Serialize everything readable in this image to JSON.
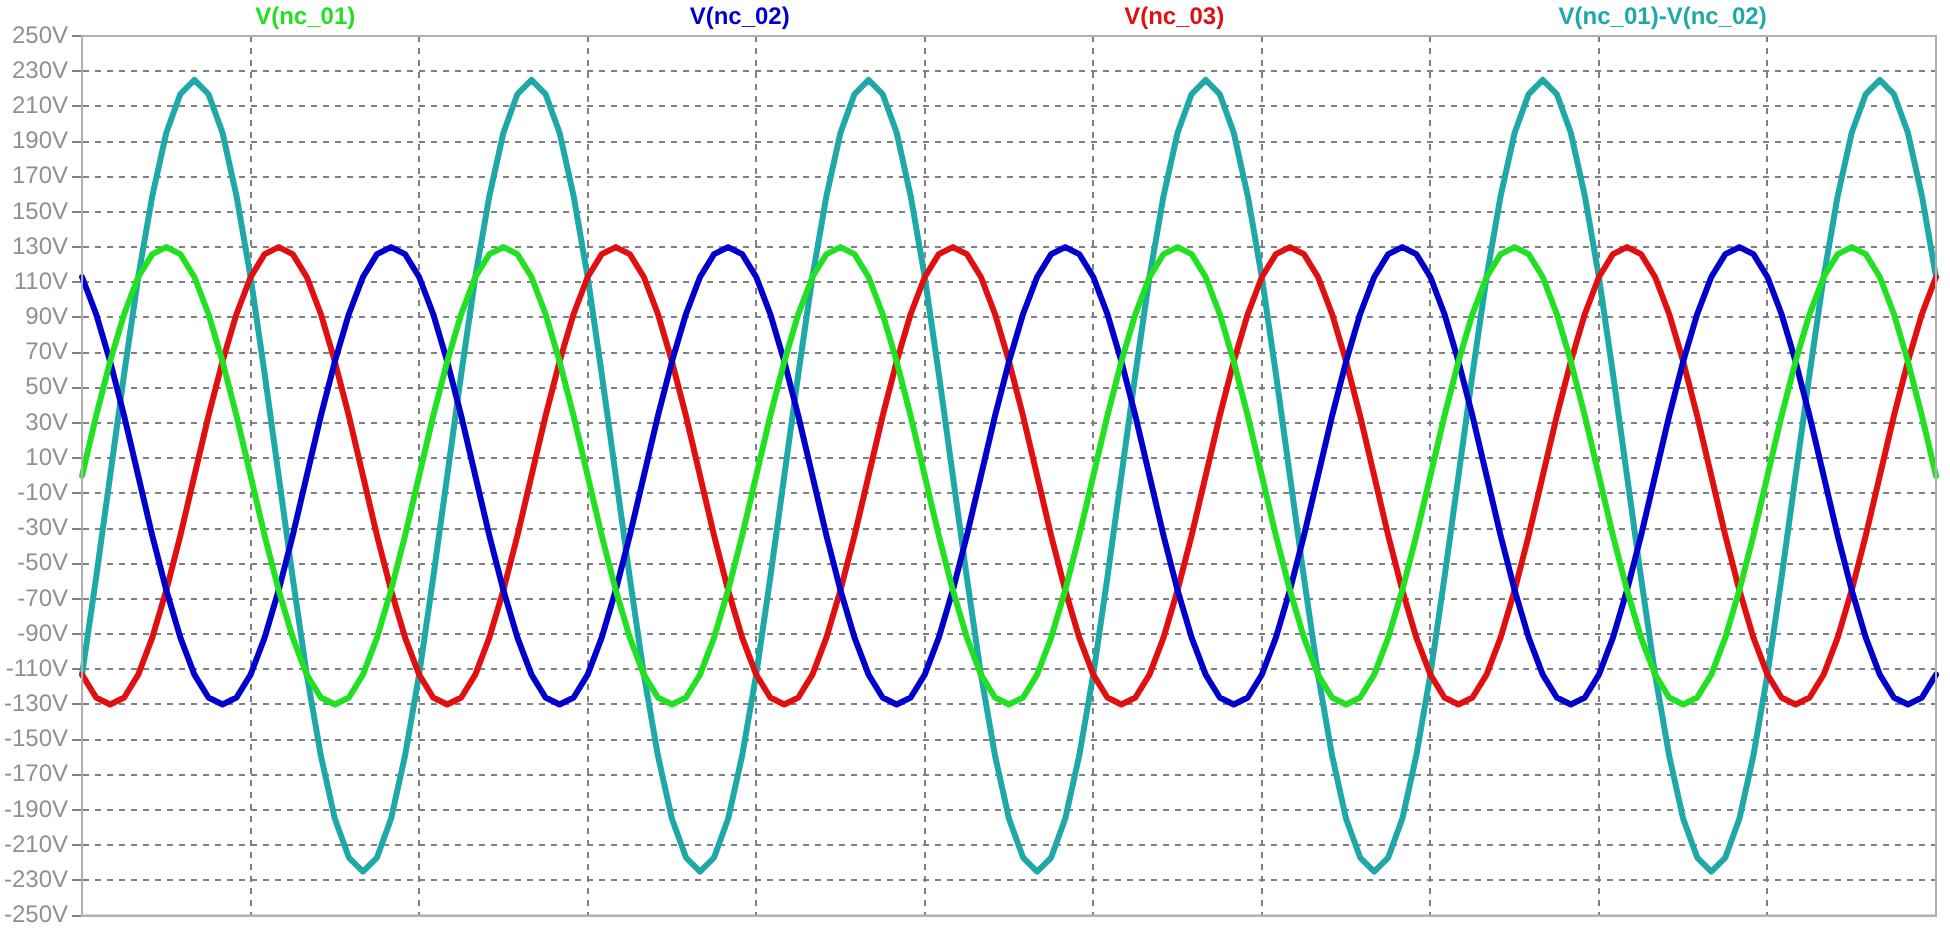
{
  "chart_data": {
    "type": "line",
    "categories": [
      null,
      null,
      null,
      null,
      null,
      null,
      null,
      null,
      null,
      null,
      null,
      null,
      null,
      null,
      null,
      null,
      null,
      null,
      null,
      null,
      null,
      null,
      null,
      null,
      null,
      null,
      null,
      null,
      null,
      null,
      null,
      null,
      null,
      null,
      null,
      null,
      null,
      null,
      null,
      null,
      null,
      null,
      null,
      null,
      null,
      null,
      null,
      null,
      null,
      null,
      null,
      null,
      null,
      null,
      null,
      null,
      null,
      null,
      null,
      null,
      null,
      null,
      null,
      null,
      null,
      null,
      null,
      null,
      null,
      null,
      null,
      null,
      null,
      null,
      null,
      null,
      null,
      null,
      null,
      null,
      null,
      null,
      null,
      null,
      null,
      null,
      null,
      null,
      null,
      null,
      null,
      null,
      null,
      null,
      null,
      null,
      null,
      null,
      null,
      null,
      null,
      null,
      null,
      null,
      null,
      null,
      null,
      null,
      null,
      null,
      null,
      null,
      null,
      null,
      null,
      null,
      null,
      null,
      null,
      null,
      null,
      null,
      null,
      null,
      null,
      null,
      null,
      null,
      null,
      null,
      null,
      null,
      null
    ],
    "series": [
      {
        "name": "V(nc_01)",
        "color": "#22e022",
        "values": [
          0,
          34,
          65,
          92,
          113,
          126,
          130,
          126,
          113,
          92,
          65,
          34,
          0,
          -34,
          -65,
          -92,
          -113,
          -126,
          -130,
          -126,
          -113,
          -92,
          -65,
          -34,
          0,
          34,
          65,
          92,
          113,
          126,
          130,
          126,
          113,
          92,
          65,
          34,
          0,
          -34,
          -65,
          -92,
          -113,
          -126,
          -130,
          -126,
          -113,
          -92,
          -65,
          -34,
          0,
          34,
          65,
          92,
          113,
          126,
          130,
          126,
          113,
          92,
          65,
          34,
          0,
          -34,
          -65,
          -92,
          -113,
          -126,
          -130,
          -126,
          -113,
          -92,
          -65,
          -34,
          0,
          34,
          65,
          92,
          113,
          126,
          130,
          126,
          113,
          92,
          65,
          34,
          0,
          -34,
          -65,
          -92,
          -113,
          -126,
          -130,
          -126,
          -113,
          -92,
          -65,
          -34,
          0,
          34,
          65,
          92,
          113,
          126,
          130,
          126,
          113,
          92,
          65,
          34,
          0,
          -34,
          -65,
          -92,
          -113,
          -126,
          -130,
          -126,
          -113,
          -92,
          -65,
          -34,
          0,
          34,
          65,
          92,
          113,
          126,
          130,
          126,
          113,
          92,
          65,
          34,
          0
        ]
      },
      {
        "name": "V(nc_02)",
        "color": "#0000cc",
        "values": [
          113,
          92,
          65,
          34,
          0,
          -34,
          -65,
          -92,
          -113,
          -126,
          -130,
          -126,
          -113,
          -92,
          -65,
          -34,
          0,
          34,
          65,
          92,
          113,
          126,
          130,
          126,
          113,
          92,
          65,
          34,
          0,
          -34,
          -65,
          -92,
          -113,
          -126,
          -130,
          -126,
          -113,
          -92,
          -65,
          -34,
          0,
          34,
          65,
          92,
          113,
          126,
          130,
          126,
          113,
          92,
          65,
          34,
          0,
          -34,
          -65,
          -92,
          -113,
          -126,
          -130,
          -126,
          -113,
          -92,
          -65,
          -34,
          0,
          34,
          65,
          92,
          113,
          126,
          130,
          126,
          113,
          92,
          65,
          34,
          0,
          -34,
          -65,
          -92,
          -113,
          -126,
          -130,
          -126,
          -113,
          -92,
          -65,
          -34,
          0,
          34,
          65,
          92,
          113,
          126,
          130,
          126,
          113,
          92,
          65,
          34,
          0,
          -34,
          -65,
          -92,
          -113,
          -126,
          -130,
          -126,
          -113,
          -92,
          -65,
          -34,
          0,
          34,
          65,
          92,
          113,
          126,
          130,
          126,
          113,
          92,
          65,
          34,
          0,
          -34,
          -65,
          -92,
          -113,
          -126,
          -130,
          -126,
          -113
        ]
      },
      {
        "name": "V(nc_03)",
        "color": "#e01010",
        "values": [
          -113,
          -126,
          -130,
          -126,
          -113,
          -92,
          -65,
          -34,
          0,
          34,
          65,
          92,
          113,
          126,
          130,
          126,
          113,
          92,
          65,
          34,
          0,
          -34,
          -65,
          -92,
          -113,
          -126,
          -130,
          -126,
          -113,
          -92,
          -65,
          -34,
          0,
          34,
          65,
          92,
          113,
          126,
          130,
          126,
          113,
          92,
          65,
          34,
          0,
          -34,
          -65,
          -92,
          -113,
          -126,
          -130,
          -126,
          -113,
          -92,
          -65,
          -34,
          0,
          34,
          65,
          92,
          113,
          126,
          130,
          126,
          113,
          92,
          65,
          34,
          0,
          -34,
          -65,
          -92,
          -113,
          -126,
          -130,
          -126,
          -113,
          -92,
          -65,
          -34,
          0,
          34,
          65,
          92,
          113,
          126,
          130,
          126,
          113,
          92,
          65,
          34,
          0,
          -34,
          -65,
          -92,
          -113,
          -126,
          -130,
          -126,
          -113,
          -92,
          -65,
          -34,
          0,
          34,
          65,
          92,
          113,
          126,
          130,
          126,
          113,
          92,
          65,
          34,
          0,
          -34,
          -65,
          -92,
          -113,
          -126,
          -130,
          -126,
          -113,
          -92,
          -65,
          -34,
          0,
          34,
          65,
          92,
          113
        ]
      },
      {
        "name": "V(nc_01)-V(nc_02)",
        "color": "#1fa8a8",
        "values": [
          -113,
          -58,
          0,
          58,
          113,
          159,
          195,
          217,
          225,
          217,
          195,
          159,
          113,
          58,
          0,
          -58,
          -113,
          -159,
          -195,
          -217,
          -225,
          -217,
          -195,
          -159,
          -113,
          -58,
          0,
          58,
          113,
          159,
          195,
          217,
          225,
          217,
          195,
          159,
          113,
          58,
          0,
          -58,
          -113,
          -159,
          -195,
          -217,
          -225,
          -217,
          -195,
          -159,
          -113,
          -58,
          0,
          58,
          113,
          159,
          195,
          217,
          225,
          217,
          195,
          159,
          113,
          58,
          0,
          -58,
          -113,
          -159,
          -195,
          -217,
          -225,
          -217,
          -195,
          -159,
          -113,
          -58,
          0,
          58,
          113,
          159,
          195,
          217,
          225,
          217,
          195,
          159,
          113,
          58,
          0,
          -58,
          -113,
          -159,
          -195,
          -217,
          -225,
          -217,
          -195,
          -159,
          -113,
          -58,
          0,
          58,
          113,
          159,
          195,
          217,
          225,
          217,
          195,
          159,
          113,
          58,
          0,
          -58,
          -113,
          -159,
          -195,
          -217,
          -225,
          -217,
          -195,
          -159,
          -113,
          -58,
          0,
          58,
          113,
          159,
          195,
          217,
          225,
          217,
          195,
          159,
          113
        ]
      }
    ],
    "ylim": [
      -250,
      250
    ],
    "yticks": [
      {
        "value": 250,
        "label": "250V"
      },
      {
        "value": 230,
        "label": "230V"
      },
      {
        "value": 210,
        "label": "210V"
      },
      {
        "value": 190,
        "label": "190V"
      },
      {
        "value": 170,
        "label": "170V"
      },
      {
        "value": 150,
        "label": "150V"
      },
      {
        "value": 130,
        "label": "130V"
      },
      {
        "value": 110,
        "label": "110V"
      },
      {
        "value": 90,
        "label": "90V"
      },
      {
        "value": 70,
        "label": "70V"
      },
      {
        "value": 50,
        "label": "50V"
      },
      {
        "value": 30,
        "label": "30V"
      },
      {
        "value": 10,
        "label": "10V"
      },
      {
        "value": -10,
        "label": "-10V"
      },
      {
        "value": -30,
        "label": "-30V"
      },
      {
        "value": -50,
        "label": "-50V"
      },
      {
        "value": -70,
        "label": "-70V"
      },
      {
        "value": -90,
        "label": "-90V"
      },
      {
        "value": -110,
        "label": "-110V"
      },
      {
        "value": -130,
        "label": "-130V"
      },
      {
        "value": -150,
        "label": "-150V"
      },
      {
        "value": -170,
        "label": "-170V"
      },
      {
        "value": -190,
        "label": "-190V"
      },
      {
        "value": -210,
        "label": "-210V"
      },
      {
        "value": -230,
        "label": "-230V"
      },
      {
        "value": -250,
        "label": "-250V"
      }
    ],
    "grid": true,
    "legend": "top",
    "tick_labels": "y",
    "marker": "none",
    "line_style": "solid"
  }
}
